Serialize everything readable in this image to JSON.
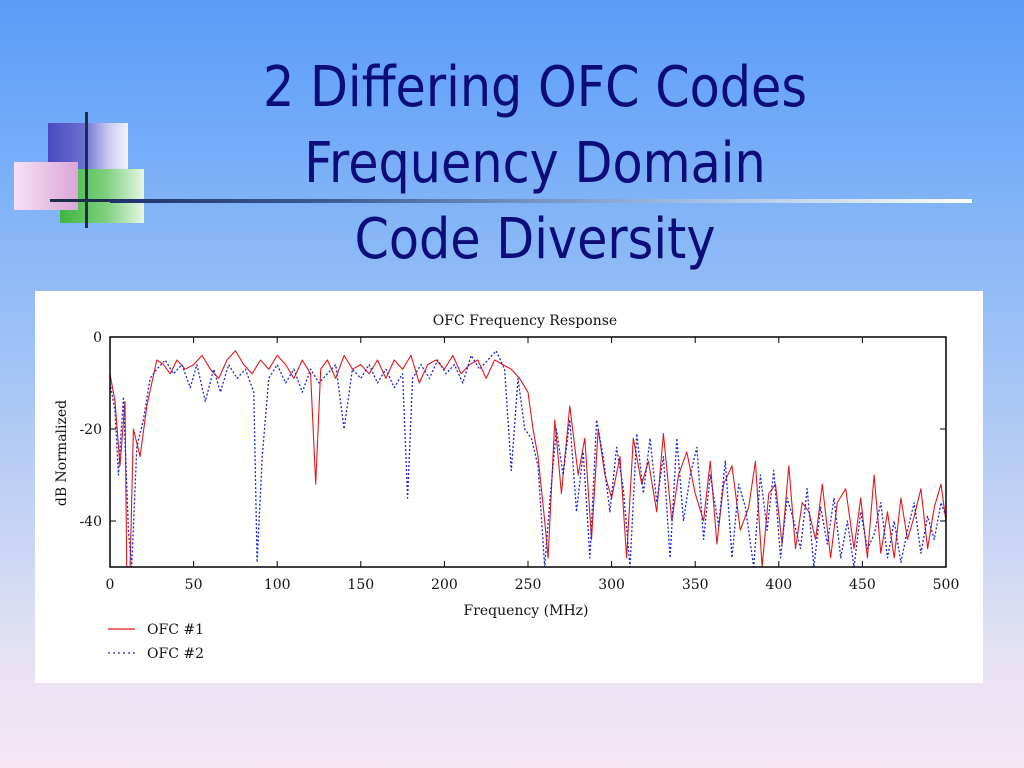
{
  "slide": {
    "title_lines": [
      "2 Differing OFC Codes",
      "Frequency Domain",
      "Code Diversity"
    ]
  },
  "colors": {
    "title": "#0d0d7a",
    "series1": "#e0191b",
    "series2": "#1b25d8"
  },
  "chart_data": {
    "type": "line",
    "title": "OFC Frequency Response",
    "xlabel": "Frequency (MHz)",
    "ylabel": "dB Normalized",
    "xlim": [
      0,
      500
    ],
    "ylim": [
      -50,
      0
    ],
    "xticks": [
      0,
      50,
      100,
      150,
      200,
      250,
      300,
      350,
      400,
      450,
      500
    ],
    "yticks": [
      0,
      -20,
      -40
    ],
    "xtick_labels": [
      "0",
      "50",
      "100",
      "150",
      "200",
      "250",
      "300",
      "350",
      "400",
      "450",
      "500"
    ],
    "ytick_labels": [
      "0",
      "-20",
      "-40"
    ],
    "legend_placement": "bottom-left",
    "series": [
      {
        "name": "OFC #1",
        "style": "solid",
        "points": [
          [
            0,
            -8
          ],
          [
            3,
            -14
          ],
          [
            6,
            -28
          ],
          [
            9,
            -14
          ],
          [
            10,
            -50
          ],
          [
            12,
            -50
          ],
          [
            14,
            -20
          ],
          [
            18,
            -26
          ],
          [
            22,
            -15
          ],
          [
            25,
            -10
          ],
          [
            28,
            -5
          ],
          [
            32,
            -6
          ],
          [
            36,
            -8
          ],
          [
            40,
            -5
          ],
          [
            45,
            -7
          ],
          [
            50,
            -6
          ],
          [
            55,
            -4
          ],
          [
            60,
            -7
          ],
          [
            65,
            -9
          ],
          [
            70,
            -5
          ],
          [
            75,
            -3
          ],
          [
            80,
            -6
          ],
          [
            85,
            -8
          ],
          [
            90,
            -5
          ],
          [
            95,
            -7
          ],
          [
            100,
            -4
          ],
          [
            105,
            -6
          ],
          [
            110,
            -9
          ],
          [
            115,
            -5
          ],
          [
            120,
            -8
          ],
          [
            123,
            -32
          ],
          [
            126,
            -7
          ],
          [
            130,
            -5
          ],
          [
            135,
            -9
          ],
          [
            140,
            -4
          ],
          [
            145,
            -7
          ],
          [
            150,
            -6
          ],
          [
            155,
            -8
          ],
          [
            160,
            -5
          ],
          [
            165,
            -9
          ],
          [
            170,
            -5
          ],
          [
            175,
            -7
          ],
          [
            180,
            -4
          ],
          [
            185,
            -10
          ],
          [
            190,
            -6
          ],
          [
            195,
            -5
          ],
          [
            200,
            -7
          ],
          [
            205,
            -4
          ],
          [
            210,
            -8
          ],
          [
            215,
            -6
          ],
          [
            220,
            -5
          ],
          [
            225,
            -9
          ],
          [
            230,
            -5
          ],
          [
            235,
            -6
          ],
          [
            240,
            -7
          ],
          [
            245,
            -9
          ],
          [
            250,
            -12
          ],
          [
            253,
            -20
          ],
          [
            256,
            -26
          ],
          [
            260,
            -40
          ],
          [
            262,
            -48
          ],
          [
            266,
            -18
          ],
          [
            270,
            -34
          ],
          [
            275,
            -15
          ],
          [
            280,
            -30
          ],
          [
            284,
            -22
          ],
          [
            288,
            -44
          ],
          [
            292,
            -20
          ],
          [
            296,
            -30
          ],
          [
            300,
            -35
          ],
          [
            305,
            -26
          ],
          [
            309,
            -48
          ],
          [
            313,
            -22
          ],
          [
            318,
            -32
          ],
          [
            322,
            -27
          ],
          [
            327,
            -38
          ],
          [
            331,
            -21
          ],
          [
            336,
            -40
          ],
          [
            340,
            -30
          ],
          [
            345,
            -25
          ],
          [
            350,
            -34
          ],
          [
            355,
            -40
          ],
          [
            359,
            -27
          ],
          [
            363,
            -45
          ],
          [
            367,
            -32
          ],
          [
            372,
            -28
          ],
          [
            377,
            -42
          ],
          [
            382,
            -37
          ],
          [
            386,
            -27
          ],
          [
            390,
            -50
          ],
          [
            394,
            -34
          ],
          [
            398,
            -32
          ],
          [
            402,
            -45
          ],
          [
            406,
            -28
          ],
          [
            410,
            -46
          ],
          [
            414,
            -36
          ],
          [
            418,
            -38
          ],
          [
            422,
            -44
          ],
          [
            426,
            -32
          ],
          [
            431,
            -48
          ],
          [
            435,
            -36
          ],
          [
            440,
            -33
          ],
          [
            445,
            -46
          ],
          [
            449,
            -35
          ],
          [
            453,
            -48
          ],
          [
            457,
            -30
          ],
          [
            461,
            -47
          ],
          [
            465,
            -38
          ],
          [
            469,
            -48
          ],
          [
            473,
            -35
          ],
          [
            477,
            -44
          ],
          [
            481,
            -39
          ],
          [
            485,
            -33
          ],
          [
            489,
            -46
          ],
          [
            493,
            -37
          ],
          [
            497,
            -32
          ],
          [
            500,
            -40
          ]
        ]
      },
      {
        "name": "OFC #2",
        "style": "dotted",
        "points": [
          [
            0,
            -10
          ],
          [
            3,
            -16
          ],
          [
            5,
            -30
          ],
          [
            8,
            -13
          ],
          [
            11,
            -42
          ],
          [
            13,
            -50
          ],
          [
            16,
            -24
          ],
          [
            20,
            -18
          ],
          [
            24,
            -9
          ],
          [
            28,
            -7
          ],
          [
            33,
            -5
          ],
          [
            38,
            -8
          ],
          [
            43,
            -6
          ],
          [
            48,
            -11
          ],
          [
            52,
            -6
          ],
          [
            57,
            -14
          ],
          [
            62,
            -7
          ],
          [
            66,
            -12
          ],
          [
            71,
            -6
          ],
          [
            76,
            -9
          ],
          [
            81,
            -7
          ],
          [
            86,
            -12
          ],
          [
            88,
            -49
          ],
          [
            91,
            -26
          ],
          [
            95,
            -9
          ],
          [
            100,
            -6
          ],
          [
            105,
            -10
          ],
          [
            110,
            -7
          ],
          [
            115,
            -12
          ],
          [
            120,
            -7
          ],
          [
            125,
            -10
          ],
          [
            130,
            -8
          ],
          [
            135,
            -6
          ],
          [
            140,
            -20
          ],
          [
            145,
            -7
          ],
          [
            150,
            -9
          ],
          [
            155,
            -6
          ],
          [
            160,
            -10
          ],
          [
            165,
            -7
          ],
          [
            170,
            -11
          ],
          [
            175,
            -8
          ],
          [
            178,
            -35
          ],
          [
            181,
            -9
          ],
          [
            186,
            -6
          ],
          [
            191,
            -9
          ],
          [
            196,
            -5
          ],
          [
            201,
            -8
          ],
          [
            206,
            -6
          ],
          [
            211,
            -10
          ],
          [
            216,
            -4
          ],
          [
            221,
            -7
          ],
          [
            226,
            -5
          ],
          [
            231,
            -3
          ],
          [
            236,
            -7
          ],
          [
            240,
            -29
          ],
          [
            244,
            -9
          ],
          [
            248,
            -20
          ],
          [
            252,
            -22
          ],
          [
            256,
            -28
          ],
          [
            260,
            -50
          ],
          [
            263,
            -36
          ],
          [
            267,
            -20
          ],
          [
            271,
            -30
          ],
          [
            275,
            -18
          ],
          [
            279,
            -38
          ],
          [
            283,
            -25
          ],
          [
            287,
            -48
          ],
          [
            291,
            -18
          ],
          [
            295,
            -26
          ],
          [
            299,
            -38
          ],
          [
            303,
            -24
          ],
          [
            307,
            -33
          ],
          [
            311,
            -50
          ],
          [
            315,
            -21
          ],
          [
            319,
            -34
          ],
          [
            323,
            -22
          ],
          [
            327,
            -36
          ],
          [
            331,
            -26
          ],
          [
            335,
            -48
          ],
          [
            339,
            -22
          ],
          [
            343,
            -40
          ],
          [
            347,
            -30
          ],
          [
            351,
            -24
          ],
          [
            355,
            -44
          ],
          [
            359,
            -30
          ],
          [
            364,
            -41
          ],
          [
            368,
            -27
          ],
          [
            372,
            -48
          ],
          [
            376,
            -32
          ],
          [
            380,
            -37
          ],
          [
            385,
            -50
          ],
          [
            389,
            -30
          ],
          [
            393,
            -42
          ],
          [
            397,
            -29
          ],
          [
            401,
            -48
          ],
          [
            405,
            -35
          ],
          [
            409,
            -40
          ],
          [
            413,
            -46
          ],
          [
            417,
            -33
          ],
          [
            421,
            -50
          ],
          [
            425,
            -37
          ],
          [
            429,
            -45
          ],
          [
            433,
            -35
          ],
          [
            437,
            -48
          ],
          [
            441,
            -40
          ],
          [
            445,
            -50
          ],
          [
            449,
            -38
          ],
          [
            453,
            -46
          ],
          [
            457,
            -43
          ],
          [
            461,
            -36
          ],
          [
            465,
            -48
          ],
          [
            469,
            -40
          ],
          [
            473,
            -49
          ],
          [
            477,
            -42
          ],
          [
            481,
            -36
          ],
          [
            485,
            -47
          ],
          [
            489,
            -39
          ],
          [
            493,
            -44
          ],
          [
            497,
            -36
          ],
          [
            500,
            -39
          ]
        ]
      }
    ]
  }
}
